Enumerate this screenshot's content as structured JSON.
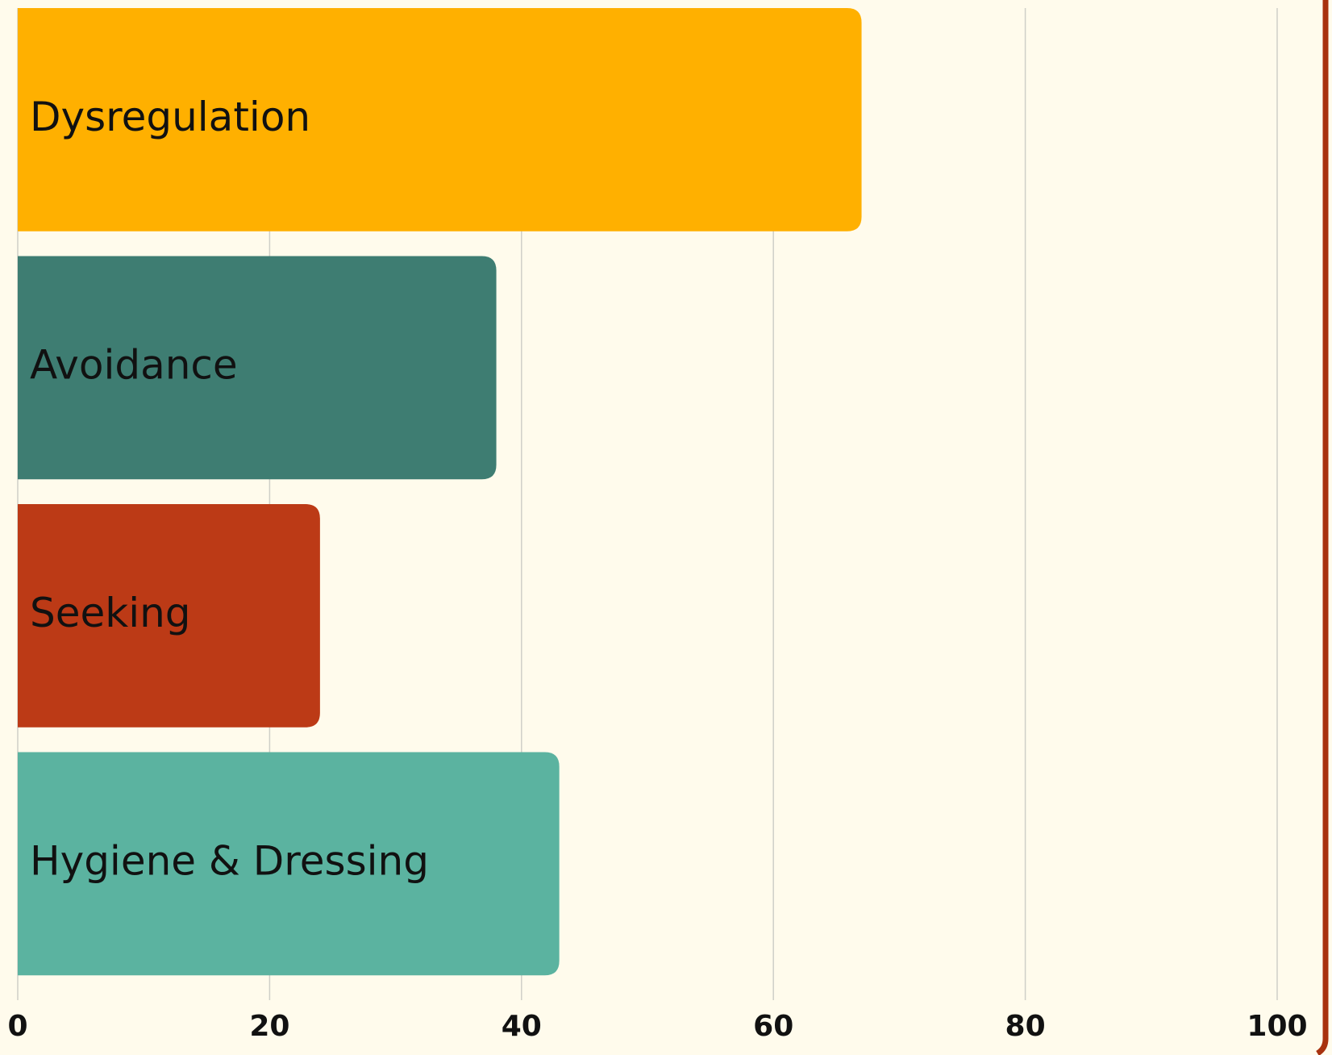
{
  "chart_data": {
    "type": "barh",
    "categories": [
      "Dysregulation",
      "Avoidance",
      "Seeking",
      "Hygiene & Dressing"
    ],
    "values": [
      67,
      38,
      24,
      43
    ],
    "colors": [
      "#ffb000",
      "#3e7d72",
      "#bc3a16",
      "#5bb3a0"
    ],
    "xlim": [
      0,
      100
    ],
    "xticks": [
      0,
      20,
      40,
      60,
      80,
      100
    ],
    "grid": true
  }
}
